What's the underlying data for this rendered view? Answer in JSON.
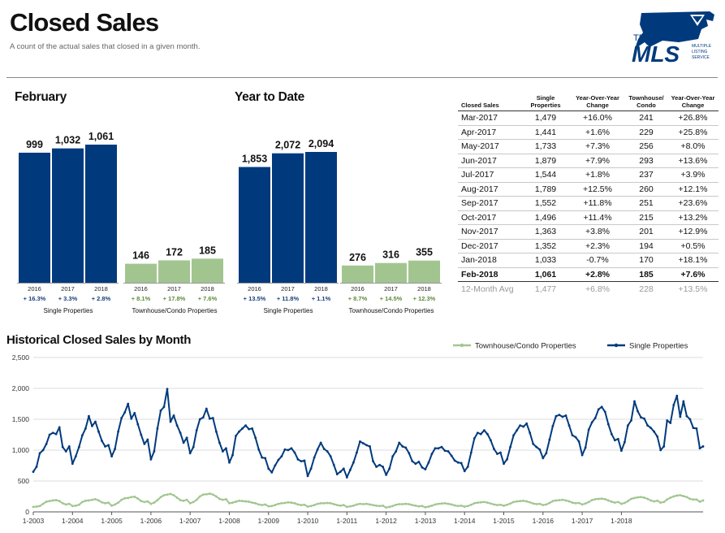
{
  "header": {
    "title": "Closed Sales",
    "subtitle": "A count of the actual sales that closed in a given month.",
    "logo": {
      "small": "TRIAD",
      "big": "MLS",
      "tag1": "MULTIPLE",
      "tag2": "LISTING",
      "tag3": "SERVICE"
    }
  },
  "colors": {
    "single": "#003a7d",
    "townhouse": "#a2c590",
    "accent_green": "#5f8a3a",
    "accent_blue": "#1a3f7a"
  },
  "panels": [
    {
      "title": "February",
      "groups": [
        {
          "label": "Single Properties",
          "color": "single",
          "years": [
            "2016",
            "2017",
            "2018"
          ],
          "values": [
            999,
            1032,
            1061
          ],
          "value_labels": [
            "999",
            "1,032",
            "1,061"
          ],
          "changes": [
            "+ 16.3%",
            "+ 3.3%",
            "+ 2.8%"
          ]
        },
        {
          "label": "Townhouse/Condo Properties",
          "color": "townhouse",
          "years": [
            "2016",
            "2017",
            "2018"
          ],
          "values": [
            146,
            172,
            185
          ],
          "value_labels": [
            "146",
            "172",
            "185"
          ],
          "changes": [
            "+ 8.1%",
            "+ 17.8%",
            "+ 7.6%"
          ]
        }
      ]
    },
    {
      "title": "Year to Date",
      "groups": [
        {
          "label": "Single Properties",
          "color": "single",
          "years": [
            "2016",
            "2017",
            "2018"
          ],
          "values": [
            1853,
            2072,
            2094
          ],
          "value_labels": [
            "1,853",
            "2,072",
            "2,094"
          ],
          "changes": [
            "+ 13.5%",
            "+ 11.8%",
            "+ 1.1%"
          ]
        },
        {
          "label": "Townhouse/Condo Properties",
          "color": "townhouse",
          "years": [
            "2016",
            "2017",
            "2018"
          ],
          "values": [
            276,
            316,
            355
          ],
          "value_labels": [
            "276",
            "316",
            "355"
          ],
          "changes": [
            "+ 8.7%",
            "+ 14.5%",
            "+ 12.3%"
          ]
        }
      ]
    }
  ],
  "table": {
    "headers": [
      "Closed Sales",
      "Single\nProperties",
      "Year-Over-Year\nChange",
      "Townhouse/\nCondo",
      "Year-Over-Year\nChange"
    ],
    "rows": [
      [
        "Mar-2017",
        "1,479",
        "+16.0%",
        "241",
        "+26.8%"
      ],
      [
        "Apr-2017",
        "1,441",
        "+1.6%",
        "229",
        "+25.8%"
      ],
      [
        "May-2017",
        "1,733",
        "+7.3%",
        "256",
        "+8.0%"
      ],
      [
        "Jun-2017",
        "1,879",
        "+7.9%",
        "293",
        "+13.6%"
      ],
      [
        "Jul-2017",
        "1,544",
        "+1.8%",
        "237",
        "+3.9%"
      ],
      [
        "Aug-2017",
        "1,789",
        "+12.5%",
        "260",
        "+12.1%"
      ],
      [
        "Sep-2017",
        "1,552",
        "+11.8%",
        "251",
        "+23.6%"
      ],
      [
        "Oct-2017",
        "1,496",
        "+11.4%",
        "215",
        "+13.2%"
      ],
      [
        "Nov-2017",
        "1,363",
        "+3.8%",
        "201",
        "+12.9%"
      ],
      [
        "Dec-2017",
        "1,352",
        "+2.3%",
        "194",
        "+0.5%"
      ],
      [
        "Jan-2018",
        "1,033",
        "-0.7%",
        "170",
        "+18.1%"
      ],
      [
        "Feb-2018",
        "1,061",
        "+2.8%",
        "185",
        "+7.6%"
      ]
    ],
    "avg": [
      "12-Month Avg",
      "1,477",
      "+6.8%",
      "228",
      "+13.5%"
    ]
  },
  "chart_data": [
    {
      "type": "bar",
      "title": "February",
      "categories": [
        "2016",
        "2017",
        "2018"
      ],
      "series": [
        {
          "name": "Single Properties",
          "values": [
            999,
            1032,
            1061
          ]
        },
        {
          "name": "Townhouse/Condo Properties",
          "values": [
            146,
            172,
            185
          ]
        }
      ]
    },
    {
      "type": "bar",
      "title": "Year to Date",
      "categories": [
        "2016",
        "2017",
        "2018"
      ],
      "series": [
        {
          "name": "Single Properties",
          "values": [
            1853,
            2072,
            2094
          ]
        },
        {
          "name": "Townhouse/Condo Properties",
          "values": [
            276,
            316,
            355
          ]
        }
      ]
    },
    {
      "type": "line",
      "title": "Historical Closed Sales by Month",
      "ylim": [
        0,
        2500
      ],
      "yticks": [
        "0",
        "500",
        "1,000",
        "1,500",
        "2,000",
        "2,500"
      ],
      "xticks": [
        "1-2003",
        "1-2004",
        "1-2005",
        "1-2006",
        "1-2007",
        "1-2008",
        "1-2009",
        "1-2010",
        "1-2011",
        "1-2012",
        "1-2013",
        "1-2014",
        "1-2015",
        "1-2016",
        "1-2017",
        "1-2018"
      ],
      "legend": "top-right",
      "series": [
        {
          "name": "Townhouse/Condo Properties",
          "values": [
            80,
            85,
            95,
            130,
            165,
            175,
            185,
            190,
            175,
            140,
            120,
            130,
            95,
            100,
            115,
            160,
            180,
            185,
            195,
            205,
            185,
            155,
            140,
            150,
            100,
            120,
            150,
            195,
            220,
            225,
            240,
            245,
            215,
            175,
            160,
            170,
            130,
            150,
            190,
            240,
            270,
            280,
            290,
            270,
            230,
            190,
            180,
            195,
            140,
            160,
            195,
            250,
            280,
            285,
            295,
            280,
            250,
            210,
            195,
            205,
            140,
            150,
            165,
            180,
            175,
            170,
            165,
            150,
            140,
            120,
            110,
            120,
            90,
            95,
            110,
            130,
            140,
            145,
            155,
            150,
            140,
            120,
            110,
            115,
            85,
            95,
            110,
            130,
            140,
            140,
            145,
            140,
            125,
            110,
            100,
            110,
            80,
            90,
            100,
            120,
            130,
            125,
            130,
            120,
            110,
            100,
            95,
            100,
            70,
            80,
            95,
            115,
            125,
            125,
            130,
            125,
            110,
            100,
            90,
            95,
            75,
            85,
            100,
            120,
            130,
            135,
            140,
            130,
            120,
            105,
            95,
            100,
            85,
            95,
            115,
            140,
            150,
            155,
            160,
            150,
            135,
            120,
            110,
            115,
            100,
            115,
            135,
            160,
            170,
            175,
            180,
            170,
            155,
            135,
            125,
            130,
            110,
            120,
            145,
            175,
            185,
            190,
            195,
            185,
            170,
            150,
            140,
            145,
            120,
            135,
            160,
            190,
            205,
            210,
            215,
            205,
            185,
            165,
            150,
            160,
            130,
            145,
            175,
            210,
            225,
            235,
            240,
            230,
            210,
            185,
            170,
            180,
            150,
            160,
            200,
            230,
            250,
            265,
            270,
            255,
            240,
            210,
            200,
            200,
            165,
            185
          ]
        },
        {
          "name": "Single Properties",
          "values": [
            650,
            730,
            950,
            1000,
            1100,
            1250,
            1280,
            1260,
            1370,
            1050,
            980,
            1060,
            780,
            900,
            1050,
            1240,
            1350,
            1550,
            1390,
            1460,
            1300,
            1150,
            1060,
            1080,
            900,
            1020,
            1300,
            1520,
            1610,
            1750,
            1510,
            1600,
            1420,
            1250,
            1100,
            1170,
            850,
            980,
            1350,
            1640,
            1700,
            1990,
            1460,
            1560,
            1400,
            1280,
            1120,
            1200,
            950,
            1050,
            1320,
            1500,
            1530,
            1670,
            1510,
            1520,
            1300,
            1120,
            980,
            1030,
            800,
            920,
            1230,
            1300,
            1350,
            1400,
            1340,
            1350,
            1200,
            1010,
            880,
            870,
            700,
            640,
            750,
            840,
            900,
            1010,
            1000,
            1030,
            960,
            850,
            820,
            830,
            580,
            700,
            880,
            1010,
            1120,
            1020,
            980,
            900,
            760,
            610,
            650,
            700,
            560,
            680,
            800,
            960,
            1140,
            1110,
            1080,
            1060,
            820,
            730,
            760,
            730,
            600,
            700,
            900,
            980,
            1120,
            1060,
            1040,
            950,
            820,
            780,
            810,
            720,
            690,
            800,
            940,
            1030,
            1030,
            1050,
            990,
            980,
            910,
            830,
            800,
            790,
            660,
            730,
            960,
            1190,
            1280,
            1260,
            1320,
            1260,
            1160,
            1020,
            940,
            960,
            780,
            850,
            1050,
            1240,
            1320,
            1400,
            1380,
            1430,
            1280,
            1100,
            1050,
            1010,
            870,
            950,
            1170,
            1390,
            1550,
            1570,
            1540,
            1560,
            1400,
            1240,
            1210,
            1140,
            920,
            1040,
            1330,
            1450,
            1520,
            1660,
            1700,
            1620,
            1420,
            1260,
            1160,
            1180,
            990,
            1130,
            1400,
            1480,
            1790,
            1630,
            1530,
            1510,
            1400,
            1360,
            1300,
            1220,
            1000,
            1060,
            1480,
            1440,
            1730,
            1880,
            1540,
            1790,
            1550,
            1500,
            1360,
            1350,
            1030,
            1060
          ]
        }
      ]
    }
  ],
  "history": {
    "title": "Historical Closed Sales by Month",
    "legend": [
      "Townhouse/Condo Properties",
      "Single Properties"
    ]
  }
}
